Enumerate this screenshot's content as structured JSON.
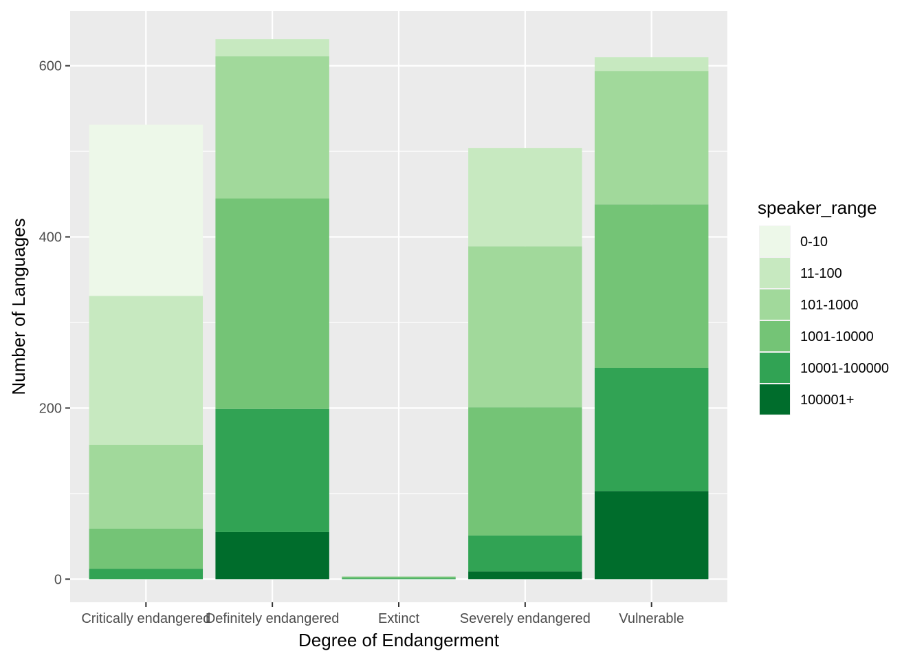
{
  "chart_data": {
    "type": "bar",
    "stacked": true,
    "xlabel": "Degree of Endangerment",
    "ylabel": "Number of Languages",
    "ylim": [
      -27,
      664
    ],
    "yticks": [
      0,
      200,
      400,
      600
    ],
    "grid": true,
    "legend_position": "right",
    "legend_title": "speaker_range",
    "categories": [
      "Critically endangered",
      "Definitely endangered",
      "Extinct",
      "Severely endangered",
      "Vulnerable"
    ],
    "series": [
      {
        "name": "0-10",
        "color": "#edf8e9",
        "values": [
          200,
          0,
          0,
          0,
          0
        ]
      },
      {
        "name": "11-100",
        "color": "#c7e9c0",
        "values": [
          174,
          20,
          0,
          115,
          16
        ]
      },
      {
        "name": "101-1000",
        "color": "#a1d99b",
        "values": [
          98,
          166,
          0,
          188,
          156
        ]
      },
      {
        "name": "1001-10000",
        "color": "#74c476",
        "values": [
          47,
          246,
          2,
          150,
          191
        ]
      },
      {
        "name": "10001-100000",
        "color": "#31a354",
        "values": [
          12,
          144,
          1,
          42,
          144
        ]
      },
      {
        "name": "100001+",
        "color": "#006d2c",
        "values": [
          0,
          55,
          0,
          9,
          103
        ]
      }
    ]
  }
}
